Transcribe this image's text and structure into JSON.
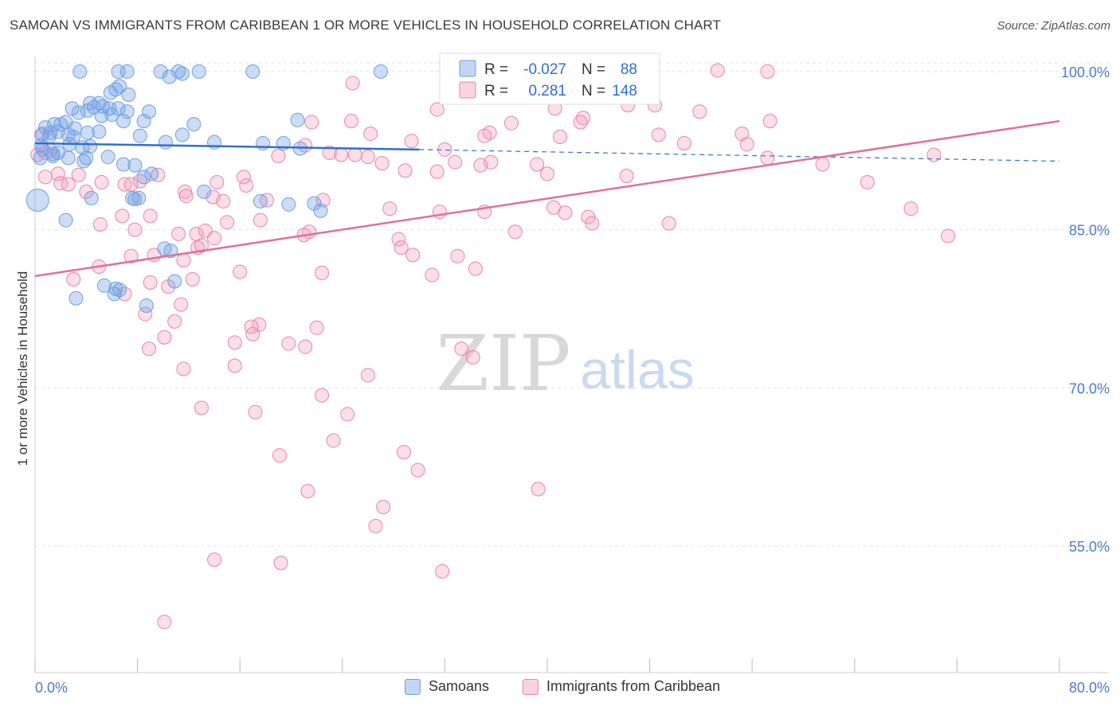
{
  "title": "SAMOAN VS IMMIGRANTS FROM CARIBBEAN 1 OR MORE VEHICLES IN HOUSEHOLD CORRELATION CHART",
  "source": "Source: ZipAtlas.com",
  "watermark": {
    "zip": "ZIP",
    "atlas": "atlas"
  },
  "colors": {
    "blue": "#6f9fe0",
    "blue_fill": "rgba(120,164,228,0.38)",
    "blue_line": "#2f6fd0",
    "pink": "#e985a6",
    "pink_fill": "rgba(240,160,188,0.35)",
    "pink_line": "#e0709a",
    "axis_label": "#4a7cc7",
    "grid": "#e4e4e4"
  },
  "legend_box": {
    "row1": {
      "r_label": "R =",
      "r_value": "-0.027",
      "n_label": "N =",
      "n_value": "88"
    },
    "row2": {
      "r_label": "R =",
      "r_value": "0.281",
      "n_label": "N =",
      "n_value": "148"
    }
  },
  "legend_bottom": [
    "Samoans",
    "Immigrants from Caribbean"
  ],
  "chart_data": {
    "type": "scatter",
    "title": "SAMOAN VS IMMIGRANTS FROM CARIBBEAN 1 OR MORE VEHICLES IN HOUSEHOLD CORRELATION CHART",
    "xlabel": "",
    "ylabel": "1 or more Vehicles in Household",
    "xlim": [
      0,
      80
    ],
    "ylim": [
      43,
      101.5
    ],
    "x_tick_labels": [
      "0.0%",
      "80.0%"
    ],
    "y_ticks": [
      55,
      70,
      85,
      100
    ],
    "y_tick_labels": [
      "55.0%",
      "70.0%",
      "85.0%",
      "100.0%"
    ],
    "grid": true,
    "legend": "top-center",
    "series": [
      {
        "name": "Samoans",
        "r": -0.027,
        "n": 88,
        "trend": {
          "x0": 0,
          "y0": 93.2,
          "x1": 30,
          "y1": 92.6,
          "dashed_to_x": 80,
          "dashed_y": 91.5
        },
        "points": [
          [
            3.5,
            100
          ],
          [
            6.5,
            100
          ],
          [
            7.2,
            100
          ],
          [
            9.8,
            100
          ],
          [
            11.2,
            100
          ],
          [
            12.8,
            100
          ],
          [
            17.0,
            100
          ],
          [
            27.0,
            100
          ],
          [
            10.5,
            99.5
          ],
          [
            11.5,
            99.8
          ],
          [
            6.6,
            98.6
          ],
          [
            5.9,
            98
          ],
          [
            7.3,
            97.8
          ],
          [
            4.3,
            97
          ],
          [
            5.0,
            97
          ],
          [
            5.8,
            96.5
          ],
          [
            2.9,
            96.5
          ],
          [
            4.6,
            96.6
          ],
          [
            5.3,
            96.7
          ],
          [
            4.1,
            96.3
          ],
          [
            3.4,
            96.1
          ],
          [
            7.2,
            96.2
          ],
          [
            8.9,
            96.2
          ],
          [
            5.2,
            95.8
          ],
          [
            6.0,
            95.9
          ],
          [
            6.9,
            95.3
          ],
          [
            8.5,
            95.3
          ],
          [
            12.4,
            95
          ],
          [
            20.5,
            95.4
          ],
          [
            1.5,
            95
          ],
          [
            2.0,
            95
          ],
          [
            2.4,
            95.2
          ],
          [
            3.1,
            94.6
          ],
          [
            1.8,
            94.3
          ],
          [
            1.2,
            94.2
          ],
          [
            0.8,
            94.7
          ],
          [
            0.5,
            94
          ],
          [
            1.1,
            93.8
          ],
          [
            2.6,
            94
          ],
          [
            3.0,
            93.8
          ],
          [
            4.1,
            94.2
          ],
          [
            5.0,
            94.3
          ],
          [
            8.2,
            93.9
          ],
          [
            11.5,
            94
          ],
          [
            0.5,
            93
          ],
          [
            0.6,
            92.6
          ],
          [
            1.4,
            92.2
          ],
          [
            2.7,
            93.1
          ],
          [
            3.7,
            92.8
          ],
          [
            4.3,
            92.9
          ],
          [
            10.2,
            93.3
          ],
          [
            14.0,
            93.3
          ],
          [
            17.8,
            93.2
          ],
          [
            19.4,
            93.2
          ],
          [
            20.7,
            92.7
          ],
          [
            0.4,
            91.8
          ],
          [
            1.4,
            92
          ],
          [
            1.8,
            92.3
          ],
          [
            2.6,
            91.8
          ],
          [
            3.8,
            91.5
          ],
          [
            4.0,
            91.8
          ],
          [
            5.7,
            91.9
          ],
          [
            6.9,
            91.2
          ],
          [
            7.8,
            91.1
          ],
          [
            8.5,
            90
          ],
          [
            9.1,
            90.3
          ],
          [
            13.2,
            88.6
          ],
          [
            7.6,
            88
          ],
          [
            7.8,
            87.9
          ],
          [
            8.1,
            88
          ],
          [
            4.4,
            88
          ],
          [
            17.6,
            87.7
          ],
          [
            0.2,
            87.8
          ],
          [
            19.8,
            87.4
          ],
          [
            21.8,
            87.5
          ],
          [
            22.3,
            86.8
          ],
          [
            2.4,
            85.9
          ],
          [
            10.6,
            83
          ],
          [
            10.9,
            80.1
          ],
          [
            5.4,
            79.7
          ],
          [
            6.6,
            79.3
          ],
          [
            6.2,
            78.9
          ],
          [
            3.2,
            78.5
          ],
          [
            8.7,
            77.8
          ],
          [
            6.3,
            79.4
          ],
          [
            10.1,
            83.2
          ],
          [
            6.5,
            96.5
          ],
          [
            6.3,
            98.3
          ]
        ]
      },
      {
        "name": "Immigrants from Caribbean",
        "r": 0.281,
        "n": 148,
        "trend": {
          "x0": 0,
          "y0": 80.6,
          "x1": 80,
          "y1": 95.3
        },
        "points": [
          [
            45.4,
            100
          ],
          [
            57.2,
            100
          ],
          [
            53.3,
            100.1
          ],
          [
            24.8,
            98.9
          ],
          [
            37.5,
            99
          ],
          [
            40.6,
            96.5
          ],
          [
            46.3,
            96.8
          ],
          [
            42.8,
            95.6
          ],
          [
            48.4,
            96.8
          ],
          [
            51.9,
            96.2
          ],
          [
            57.4,
            95.3
          ],
          [
            31.4,
            96.4
          ],
          [
            24.7,
            95.3
          ],
          [
            21.6,
            95.2
          ],
          [
            35.5,
            94.2
          ],
          [
            37.2,
            95.1
          ],
          [
            42.6,
            95.2
          ],
          [
            35.1,
            93.9
          ],
          [
            41.0,
            93.8
          ],
          [
            48.7,
            94
          ],
          [
            55.2,
            94.1
          ],
          [
            50.7,
            93.2
          ],
          [
            55.6,
            93.1
          ],
          [
            29.4,
            93.4
          ],
          [
            26.2,
            94.1
          ],
          [
            21.1,
            93
          ],
          [
            23.9,
            92.1
          ],
          [
            19.0,
            92
          ],
          [
            23.0,
            92.3
          ],
          [
            25.0,
            92.1
          ],
          [
            32.0,
            92.6
          ],
          [
            32.8,
            91.4
          ],
          [
            26.0,
            91.9
          ],
          [
            27.1,
            91.3
          ],
          [
            34.8,
            91.1
          ],
          [
            35.6,
            91.4
          ],
          [
            39.2,
            91.2
          ],
          [
            28.9,
            90.6
          ],
          [
            31.4,
            90.5
          ],
          [
            40.0,
            90.3
          ],
          [
            46.2,
            90.1
          ],
          [
            57.2,
            91.8
          ],
          [
            61.5,
            91.2
          ],
          [
            70.2,
            92.1
          ],
          [
            65.0,
            89.5
          ],
          [
            0.2,
            92.1
          ],
          [
            0.6,
            94.1
          ],
          [
            1.2,
            92.5
          ],
          [
            1.8,
            90.3
          ],
          [
            3.4,
            90.2
          ],
          [
            0.8,
            90.0
          ],
          [
            2.0,
            89.4
          ],
          [
            2.6,
            89.3
          ],
          [
            4.0,
            88.6
          ],
          [
            5.2,
            89.5
          ],
          [
            7.0,
            89.3
          ],
          [
            11.7,
            88.6
          ],
          [
            14.2,
            89.5
          ],
          [
            16.3,
            90.0
          ],
          [
            16.5,
            89.2
          ],
          [
            11.8,
            88.2
          ],
          [
            8.2,
            89.6
          ],
          [
            9.6,
            90.2
          ],
          [
            0.8,
            92.3
          ],
          [
            13.9,
            88.1
          ],
          [
            14.7,
            87.7
          ],
          [
            18.1,
            87.8
          ],
          [
            22.5,
            87.8
          ],
          [
            27.7,
            87.0
          ],
          [
            31.6,
            86.7
          ],
          [
            35.1,
            86.7
          ],
          [
            40.5,
            87.1
          ],
          [
            41.4,
            86.6
          ],
          [
            43.2,
            86.2
          ],
          [
            5.1,
            85.5
          ],
          [
            6.8,
            86.3
          ],
          [
            9.0,
            86.3
          ],
          [
            7.8,
            85.0
          ],
          [
            11.2,
            84.6
          ],
          [
            12.6,
            84.6
          ],
          [
            13.3,
            84.9
          ],
          [
            15.0,
            85.7
          ],
          [
            17.6,
            85.9
          ],
          [
            21.4,
            84.8
          ],
          [
            21.0,
            84.5
          ],
          [
            28.4,
            84.1
          ],
          [
            37.5,
            84.8
          ],
          [
            43.5,
            85.6
          ],
          [
            49.5,
            85.6
          ],
          [
            68.4,
            87.0
          ],
          [
            71.3,
            84.4
          ],
          [
            7.5,
            82.5
          ],
          [
            9.3,
            82.6
          ],
          [
            11.6,
            82.1
          ],
          [
            12.7,
            83.3
          ],
          [
            13.0,
            83.5
          ],
          [
            14.0,
            84.2
          ],
          [
            28.6,
            83.3
          ],
          [
            29.5,
            82.6
          ],
          [
            33.0,
            82.5
          ],
          [
            34.4,
            81.3
          ],
          [
            5.0,
            81.5
          ],
          [
            3.0,
            80.3
          ],
          [
            10.4,
            79.6
          ],
          [
            12.3,
            80.3
          ],
          [
            16.0,
            81.0
          ],
          [
            22.4,
            80.9
          ],
          [
            31.0,
            80.7
          ],
          [
            11.4,
            77.9
          ],
          [
            9.0,
            80.0
          ],
          [
            7.0,
            78.9
          ],
          [
            8.6,
            77.0
          ],
          [
            10.9,
            76.3
          ],
          [
            17.5,
            76.0
          ],
          [
            17.0,
            75.1
          ],
          [
            16.9,
            75.8
          ],
          [
            22.0,
            75.7
          ],
          [
            19.8,
            74.2
          ],
          [
            15.6,
            74.3
          ],
          [
            10.1,
            74.8
          ],
          [
            8.9,
            73.7
          ],
          [
            21.1,
            73.9
          ],
          [
            33.3,
            73.7
          ],
          [
            34.2,
            72.9
          ],
          [
            11.6,
            71.8
          ],
          [
            15.6,
            72.1
          ],
          [
            26.0,
            71.2
          ],
          [
            22.4,
            69.3
          ],
          [
            13.0,
            68.1
          ],
          [
            17.2,
            67.7
          ],
          [
            24.4,
            67.5
          ],
          [
            23.3,
            65.0
          ],
          [
            19.1,
            63.6
          ],
          [
            28.8,
            63.9
          ],
          [
            29.9,
            62.2
          ],
          [
            39.3,
            60.4
          ],
          [
            21.3,
            60.2
          ],
          [
            27.2,
            58.7
          ],
          [
            26.6,
            56.9
          ],
          [
            14.0,
            53.7
          ],
          [
            19.2,
            53.4
          ],
          [
            31.8,
            52.6
          ],
          [
            10.1,
            47.8
          ],
          [
            7.5,
            89.3
          ]
        ]
      }
    ]
  }
}
